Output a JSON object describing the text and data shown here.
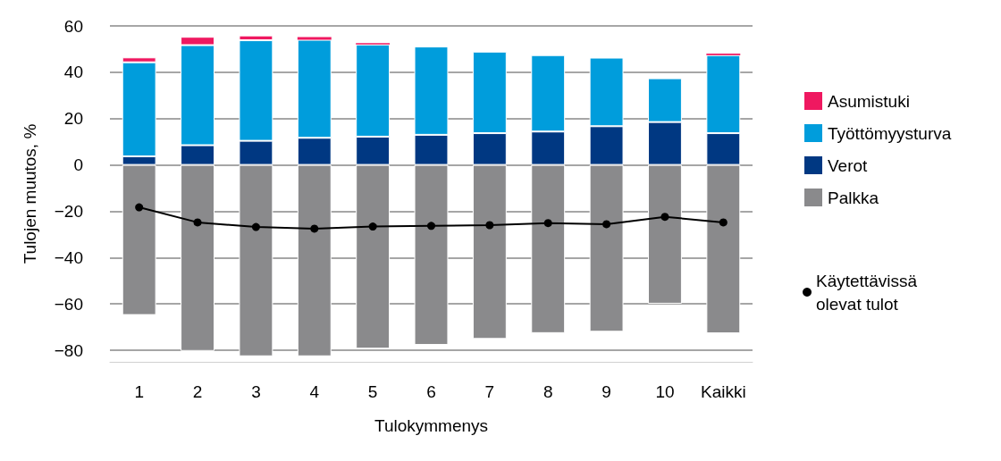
{
  "chart_data": {
    "type": "bar",
    "stacked": true,
    "xlabel": "Tulokymmenys",
    "ylabel": "Tulojen muutos, %",
    "categories": [
      "1",
      "2",
      "3",
      "4",
      "5",
      "6",
      "7",
      "8",
      "9",
      "10",
      "Kaikki"
    ],
    "series": [
      {
        "name": "Verot",
        "color": "#003882",
        "values": [
          3.7,
          8.5,
          10.4,
          11.7,
          12.2,
          13,
          13.7,
          14.4,
          16.7,
          18.5,
          13.7
        ]
      },
      {
        "name": "Työttömyysturva",
        "color": "#009ddc",
        "values": [
          40.6,
          43.2,
          43.4,
          42.3,
          39.8,
          38.1,
          35.2,
          33,
          29.6,
          18.9,
          33.7
        ]
      },
      {
        "name": "Asumistuki",
        "color": "#ef1860",
        "values": [
          2.1,
          3.6,
          2.1,
          1.2,
          0.6,
          0,
          0,
          0,
          0,
          0,
          0.6
        ]
      },
      {
        "name": "Palkka",
        "color": "#8a8a8c",
        "values": [
          -64.8,
          -80.3,
          -82.6,
          -82.6,
          -79.3,
          -77.7,
          -75.1,
          -72.6,
          -72,
          -59.9,
          -72.7
        ]
      },
      {
        "name": "Käytettävissä olevat tulot",
        "type": "line",
        "color": "#000000",
        "marker": "circle",
        "values": [
          -18.3,
          -24.8,
          -26.8,
          -27.5,
          -26.6,
          -26.3,
          -26,
          -25.1,
          -25.6,
          -22.4,
          -24.8
        ]
      }
    ],
    "ylim": [
      -85,
      60
    ],
    "yticks": [
      {
        "value": -80,
        "label": "−80"
      },
      {
        "value": -60,
        "label": "−60"
      },
      {
        "value": -40,
        "label": "−40"
      },
      {
        "value": -20,
        "label": "−20"
      },
      0,
      20,
      40,
      60
    ],
    "grid": "y",
    "legend": "right"
  }
}
